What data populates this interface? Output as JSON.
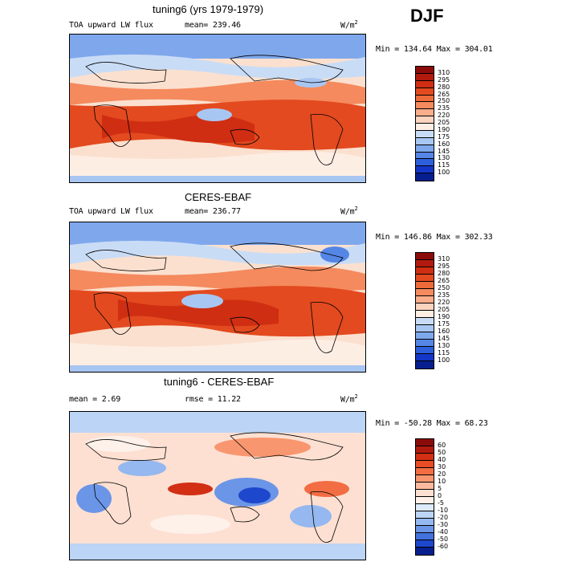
{
  "season": "DJF",
  "panels": [
    {
      "title": "tuning6 (yrs 1979-1979)",
      "left_label": "TOA upward LW flux",
      "mean_label": "mean= 239.46",
      "units": "W/m",
      "units_sup": "2",
      "minmax": "Min = 134.64 Max = 304.01",
      "colorbar_labels": [
        "310",
        "295",
        "280",
        "265",
        "250",
        "235",
        "220",
        "205",
        "190",
        "175",
        "160",
        "145",
        "130",
        "115",
        "100"
      ]
    },
    {
      "title": "CERES-EBAF",
      "left_label": "TOA upward LW flux",
      "mean_label": "mean= 236.77",
      "units": "W/m",
      "units_sup": "2",
      "minmax": "Min = 146.86 Max = 302.33",
      "colorbar_labels": [
        "310",
        "295",
        "280",
        "265",
        "250",
        "235",
        "220",
        "205",
        "190",
        "175",
        "160",
        "145",
        "130",
        "115",
        "100"
      ]
    },
    {
      "title": "tuning6 - CERES-EBAF",
      "left_label": "mean =   2.69",
      "mean_label": "rmse =  11.22",
      "units": "W/m",
      "units_sup": "2",
      "minmax": "Min = -50.28 Max =  68.23",
      "colorbar_labels": [
        "60",
        "50",
        "40",
        "30",
        "20",
        "10",
        "5",
        "0",
        "-5",
        "-10",
        "-20",
        "-30",
        "-40",
        "-50",
        "-60"
      ]
    }
  ],
  "colors": {
    "abs_scale": [
      "#8b0b0b",
      "#b11a0f",
      "#cf2e12",
      "#e34a1f",
      "#ef6a3a",
      "#f48a5e",
      "#f9ad8a",
      "#fcd3bf",
      "#fdeee4",
      "#c9dcf6",
      "#a8c6f2",
      "#7fa8ec",
      "#5586e6",
      "#2d5fdc",
      "#1436c8",
      "#071f8e"
    ],
    "diff_scale": [
      "#8b0b0b",
      "#b11a0f",
      "#d22f14",
      "#e74c25",
      "#f26d43",
      "#f8966f",
      "#fbb99f",
      "#fde0d2",
      "#fdf1ea",
      "#ddeaf9",
      "#bcd4f5",
      "#94b8ef",
      "#6b95e7",
      "#4371de",
      "#1d47cc",
      "#071f8e"
    ]
  }
}
